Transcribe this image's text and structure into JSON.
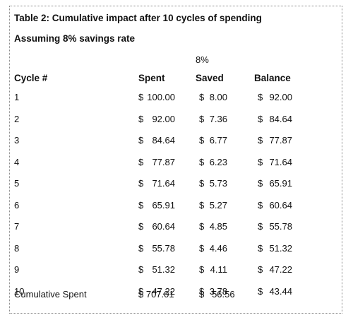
{
  "table": {
    "title": "Table 2: Cumulative impact after 10 cycles of spending",
    "subtitle": "Assuming 8% savings rate",
    "rate_label": "8%",
    "headers": {
      "cycle": "Cycle #",
      "spent": "Spent",
      "saved": "Saved",
      "balance": "Balance"
    },
    "currency": "$",
    "rows": [
      {
        "cycle": "1",
        "spent": "100.00",
        "saved": "8.00",
        "balance": "92.00"
      },
      {
        "cycle": "2",
        "spent": "92.00",
        "saved": "7.36",
        "balance": "84.64"
      },
      {
        "cycle": "3",
        "spent": "84.64",
        "saved": "6.77",
        "balance": "77.87"
      },
      {
        "cycle": "4",
        "spent": "77.87",
        "saved": "6.23",
        "balance": "71.64"
      },
      {
        "cycle": "5",
        "spent": "71.64",
        "saved": "5.73",
        "balance": "65.91"
      },
      {
        "cycle": "6",
        "spent": "65.91",
        "saved": "5.27",
        "balance": "60.64"
      },
      {
        "cycle": "7",
        "spent": "60.64",
        "saved": "4.85",
        "balance": "55.78"
      },
      {
        "cycle": "8",
        "spent": "55.78",
        "saved": "4.46",
        "balance": "51.32"
      },
      {
        "cycle": "9",
        "spent": "51.32",
        "saved": "4.11",
        "balance": "47.22"
      },
      {
        "cycle": "10",
        "spent": "47.22",
        "saved": "3.78",
        "balance": "43.44"
      }
    ],
    "total": {
      "label": "Cumulative Spent",
      "spent": "$ 707.01",
      "saved": "$   56.56"
    }
  }
}
